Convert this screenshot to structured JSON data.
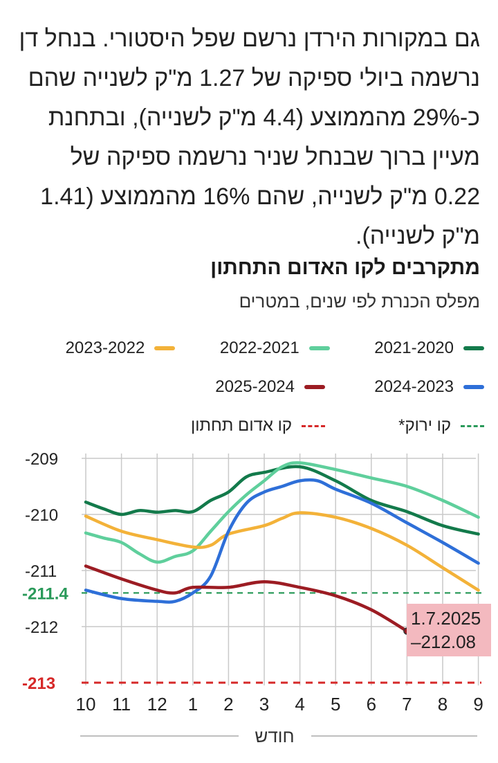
{
  "article": {
    "paragraph": "גם במקורות הירדן נרשם שפל היסטורי. בנחל דן נרשמה ביולי ספיקה של 1.27 מ\"ק לשנייה שהם כ-29% מהממוצע (4.4 מ\"ק לשנייה), ובתחנת מעיין ברוך שבנחל שניר נרשמה ספיקה של 0.22 מ\"ק לשנייה, שהם 16% מהממוצע (1.41 מ\"ק לשנייה)."
  },
  "chart_data": {
    "type": "line",
    "title": "מתקרבים לקו האדום התחתון",
    "subtitle": "מפלס הכנרת לפי שנים, במטרים",
    "xlabel": "חודש",
    "x_ticks": [
      "10",
      "11",
      "12",
      "1",
      "2",
      "3",
      "4",
      "5",
      "6",
      "7",
      "8",
      "9"
    ],
    "y_ticks": [
      "-209",
      "-210",
      "-211",
      "-212"
    ],
    "ylim": [
      -213.1,
      -208.9
    ],
    "grid": true,
    "legend_position": "top",
    "series": [
      {
        "name": "2021-2020",
        "color": "#137a4b",
        "points": [
          [
            0,
            -209.78
          ],
          [
            0.5,
            -209.9
          ],
          [
            1,
            -210.0
          ],
          [
            1.5,
            -209.93
          ],
          [
            2,
            -209.96
          ],
          [
            2.5,
            -209.93
          ],
          [
            3,
            -209.95
          ],
          [
            3.5,
            -209.75
          ],
          [
            4,
            -209.6
          ],
          [
            4.5,
            -209.33
          ],
          [
            5,
            -209.25
          ],
          [
            6,
            -209.15
          ],
          [
            7,
            -209.4
          ],
          [
            8,
            -209.75
          ],
          [
            9,
            -209.95
          ],
          [
            10,
            -210.2
          ],
          [
            11,
            -210.35
          ]
        ]
      },
      {
        "name": "2022-2021",
        "color": "#5fcf9c",
        "points": [
          [
            0,
            -210.33
          ],
          [
            0.5,
            -210.42
          ],
          [
            1,
            -210.5
          ],
          [
            1.5,
            -210.7
          ],
          [
            2,
            -210.85
          ],
          [
            2.5,
            -210.75
          ],
          [
            3,
            -210.65
          ],
          [
            3.5,
            -210.3
          ],
          [
            4,
            -209.95
          ],
          [
            4.5,
            -209.65
          ],
          [
            5,
            -209.4
          ],
          [
            5.5,
            -209.15
          ],
          [
            6,
            -209.08
          ],
          [
            7,
            -209.2
          ],
          [
            8,
            -209.35
          ],
          [
            9,
            -209.5
          ],
          [
            10,
            -209.75
          ],
          [
            11,
            -210.05
          ]
        ]
      },
      {
        "name": "2023-2022",
        "color": "#f3b239",
        "points": [
          [
            0,
            -210.03
          ],
          [
            1,
            -210.3
          ],
          [
            2,
            -210.45
          ],
          [
            3,
            -210.58
          ],
          [
            3.5,
            -210.55
          ],
          [
            4,
            -210.35
          ],
          [
            5,
            -210.2
          ],
          [
            5.5,
            -210.07
          ],
          [
            6,
            -209.97
          ],
          [
            7,
            -210.05
          ],
          [
            8,
            -210.25
          ],
          [
            9,
            -210.55
          ],
          [
            10,
            -210.95
          ],
          [
            11,
            -211.35
          ]
        ]
      },
      {
        "name": "2024-2023",
        "color": "#2e6fd8",
        "points": [
          [
            0,
            -211.35
          ],
          [
            1,
            -211.5
          ],
          [
            2,
            -211.55
          ],
          [
            2.5,
            -211.55
          ],
          [
            3,
            -211.4
          ],
          [
            3.5,
            -211.1
          ],
          [
            4,
            -210.3
          ],
          [
            4.5,
            -209.8
          ],
          [
            5,
            -209.6
          ],
          [
            5.5,
            -209.5
          ],
          [
            6,
            -209.4
          ],
          [
            6.5,
            -209.4
          ],
          [
            7,
            -209.55
          ],
          [
            8,
            -209.8
          ],
          [
            9,
            -210.15
          ],
          [
            10,
            -210.5
          ],
          [
            11,
            -210.87
          ]
        ]
      },
      {
        "name": "2025-2024",
        "color": "#9c1c23",
        "points": [
          [
            0,
            -210.92
          ],
          [
            1,
            -211.15
          ],
          [
            2,
            -211.35
          ],
          [
            2.5,
            -211.4
          ],
          [
            3,
            -211.3
          ],
          [
            4,
            -211.3
          ],
          [
            5,
            -211.2
          ],
          [
            6,
            -211.3
          ],
          [
            7,
            -211.45
          ],
          [
            8,
            -211.7
          ],
          [
            9,
            -212.08
          ]
        ]
      }
    ],
    "reference_lines": [
      {
        "name": "קו ירוק*",
        "value": -211.4,
        "label": "-211.4",
        "color": "#2a9a5a"
      },
      {
        "name": "קו אדום תחתון",
        "value": -213,
        "label": "-213",
        "color": "#d62828"
      }
    ],
    "annotation": {
      "date": "1.7.2025",
      "value": "–212.08",
      "x": 9,
      "y": -212.08,
      "background": "#f3b9bf"
    }
  }
}
